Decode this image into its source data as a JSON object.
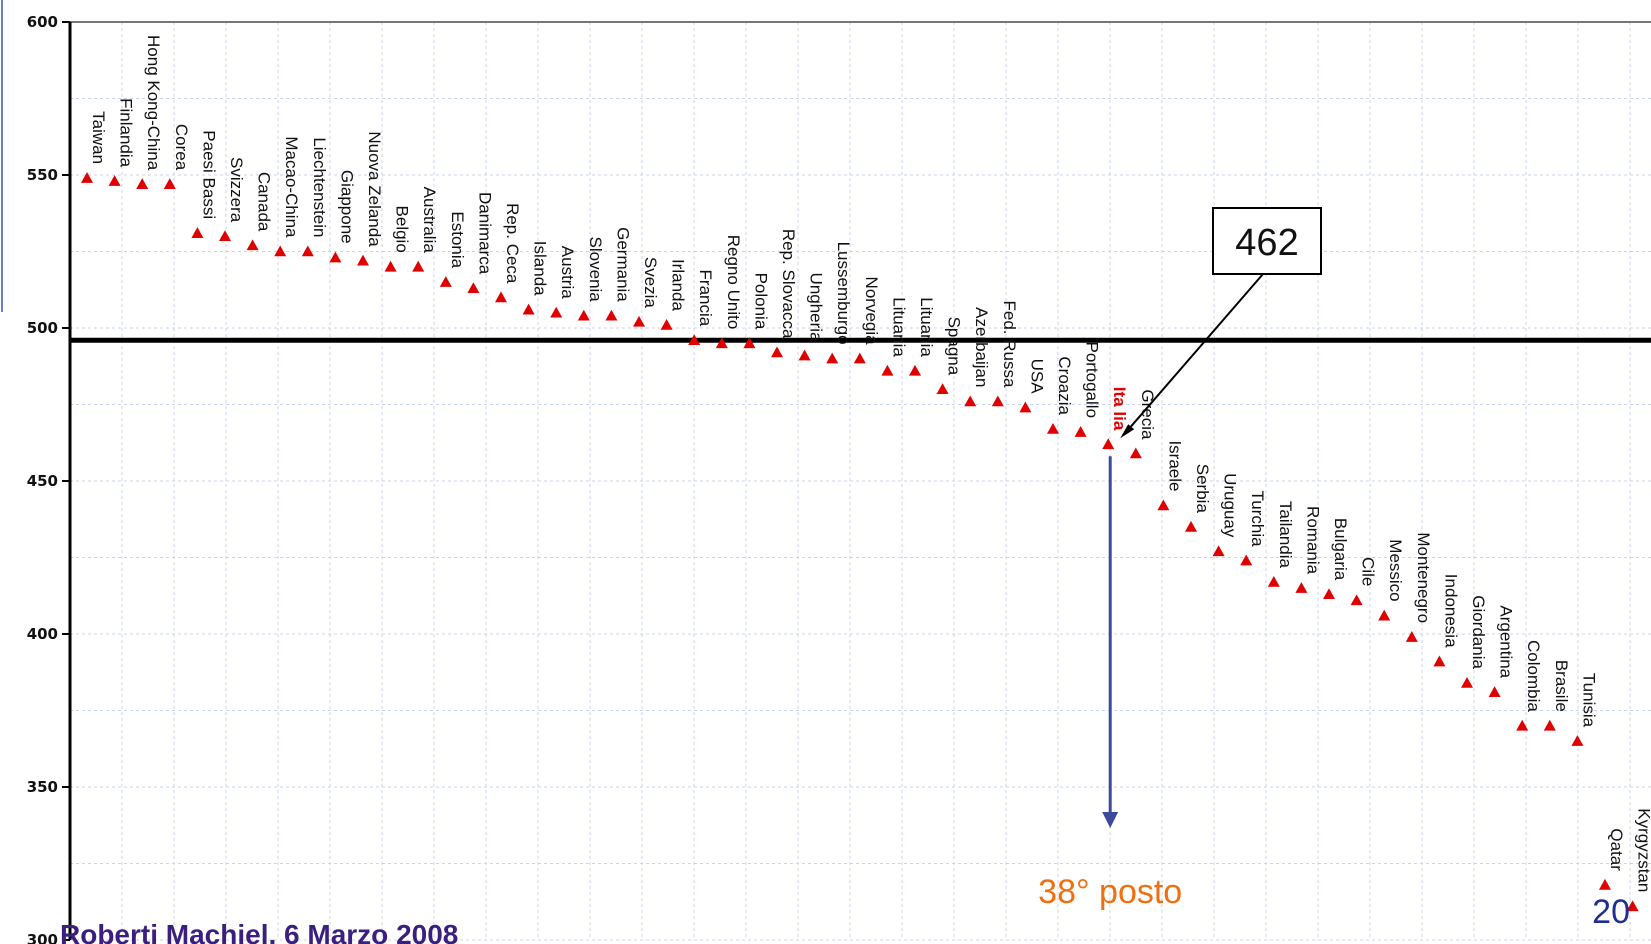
{
  "chart_data": {
    "type": "scatter",
    "marker": "triangle",
    "marker_color": "#e00000",
    "ylim": [
      300,
      600
    ],
    "y_ticks": [
      "600",
      "550",
      "500",
      "450",
      "400",
      "350",
      "300"
    ],
    "grid": true,
    "reference_line": {
      "value": 496
    },
    "highlight": {
      "name": "Italia",
      "label": "Ita lia",
      "value": 462,
      "callout": "462",
      "rank_label": "38° posto",
      "color": "#e00000"
    },
    "points": [
      {
        "label": "Taiwan",
        "value": 549
      },
      {
        "label": "Finlandia",
        "value": 548
      },
      {
        "label": "Hong Kong-China",
        "value": 547
      },
      {
        "label": "Corea",
        "value": 547
      },
      {
        "label": "Paesi Bassi",
        "value": 531
      },
      {
        "label": "Svizzera",
        "value": 530
      },
      {
        "label": "Canada",
        "value": 527
      },
      {
        "label": "Macao-China",
        "value": 525
      },
      {
        "label": "Liechtenstein",
        "value": 525
      },
      {
        "label": "Giappone",
        "value": 523
      },
      {
        "label": "Nuova Zelanda",
        "value": 522
      },
      {
        "label": "Belgio",
        "value": 520
      },
      {
        "label": "Australia",
        "value": 520
      },
      {
        "label": "Estonia",
        "value": 515
      },
      {
        "label": "Danimarca",
        "value": 513
      },
      {
        "label": "Rep. Ceca",
        "value": 510
      },
      {
        "label": "Islanda",
        "value": 506
      },
      {
        "label": "Austria",
        "value": 505
      },
      {
        "label": "Slovenia",
        "value": 504
      },
      {
        "label": "Germania",
        "value": 504
      },
      {
        "label": "Svezia",
        "value": 502
      },
      {
        "label": "Irlanda",
        "value": 501
      },
      {
        "label": "Francia",
        "value": 496
      },
      {
        "label": "Regno Unito",
        "value": 495
      },
      {
        "label": "Polonia",
        "value": 495
      },
      {
        "label": "Rep. Slovacca",
        "value": 492
      },
      {
        "label": "Ungheria",
        "value": 491
      },
      {
        "label": "Lussemburgo",
        "value": 490
      },
      {
        "label": "Norvegia",
        "value": 490
      },
      {
        "label": "Lituania",
        "value": 486
      },
      {
        "label": "Lituania",
        "value": 486
      },
      {
        "label": "Spagna",
        "value": 480
      },
      {
        "label": "Azerbaijan",
        "value": 476
      },
      {
        "label": "Fed. Russa",
        "value": 476
      },
      {
        "label": "USA",
        "value": 474
      },
      {
        "label": "Croazia",
        "value": 467
      },
      {
        "label": "Portogallo",
        "value": 466
      },
      {
        "label": "Ita lia",
        "value": 462
      },
      {
        "label": "Grecia",
        "value": 459
      },
      {
        "label": "Israele",
        "value": 442
      },
      {
        "label": "Serbia",
        "value": 435
      },
      {
        "label": "Uruguay",
        "value": 427
      },
      {
        "label": "Turchia",
        "value": 424
      },
      {
        "label": "Tailandia",
        "value": 417
      },
      {
        "label": "Romania",
        "value": 415
      },
      {
        "label": "Bulgaria",
        "value": 413
      },
      {
        "label": "Cile",
        "value": 411
      },
      {
        "label": "Messico",
        "value": 406
      },
      {
        "label": "Montenegro",
        "value": 399
      },
      {
        "label": "Indonesia",
        "value": 391
      },
      {
        "label": "Giordania",
        "value": 384
      },
      {
        "label": "Argentina",
        "value": 381
      },
      {
        "label": "Colombia",
        "value": 370
      },
      {
        "label": "Brasile",
        "value": 370
      },
      {
        "label": "Tunisia",
        "value": 365
      },
      {
        "label": "Qatar",
        "value": 318
      },
      {
        "label": "Kyrgyzstan",
        "value": 311
      }
    ]
  },
  "footer": {
    "text": "Roberti Machiel, 6 Marzo 2008",
    "page_number": "20"
  }
}
